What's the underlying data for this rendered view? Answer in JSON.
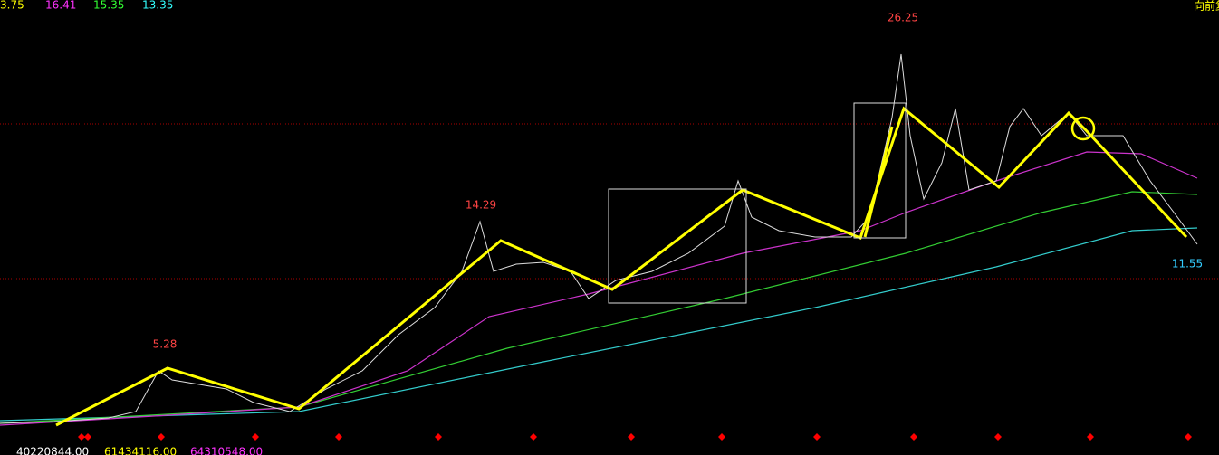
{
  "legend": {
    "ma1": "3.75",
    "ma2": "16.41",
    "ma3": "15.35",
    "ma4": "13.35",
    "mode": "向前复"
  },
  "price_labels": {
    "low_peak": "5.28",
    "mid_peak": "14.29",
    "high_peak": "26.25",
    "last": "11.55"
  },
  "volume_legend": {
    "vol": "40220844.00",
    "vma1": "61434116.00",
    "vma2": "64310548.00"
  }
}
